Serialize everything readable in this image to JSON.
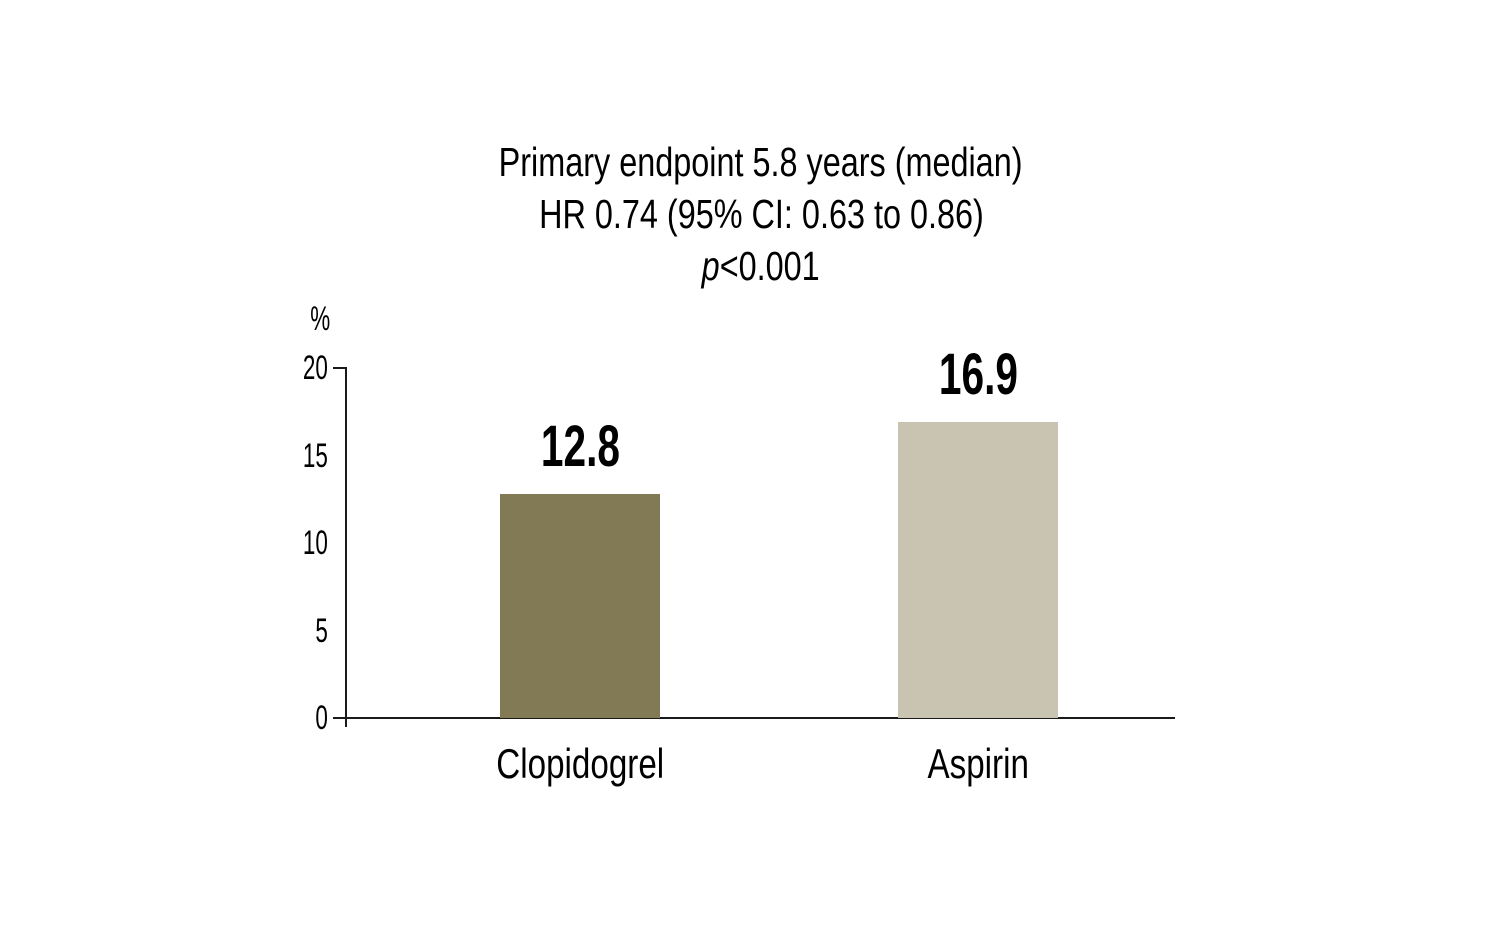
{
  "chart_data": {
    "type": "bar",
    "title_lines": [
      "Primary endpoint 5.8 years (median)",
      "HR 0.74 (95% CI: 0.63 to 0.86)"
    ],
    "p_line": {
      "prefix": "p",
      "rest": "<0.001"
    },
    "ylabel": "%",
    "ylim": [
      0,
      20
    ],
    "yticks": [
      0,
      5,
      10,
      15,
      20
    ],
    "categories": [
      "Clopidogrel",
      "Aspirin"
    ],
    "values": [
      12.8,
      16.9
    ],
    "value_labels": [
      "12.8",
      "16.9"
    ],
    "bar_colors": [
      "#817A55",
      "#C9C4B1"
    ],
    "axis_color": "#1a1a1a",
    "text_color": "#000000",
    "grid": false,
    "legend": false,
    "tick_marks_only_at": [
      0,
      20
    ]
  }
}
